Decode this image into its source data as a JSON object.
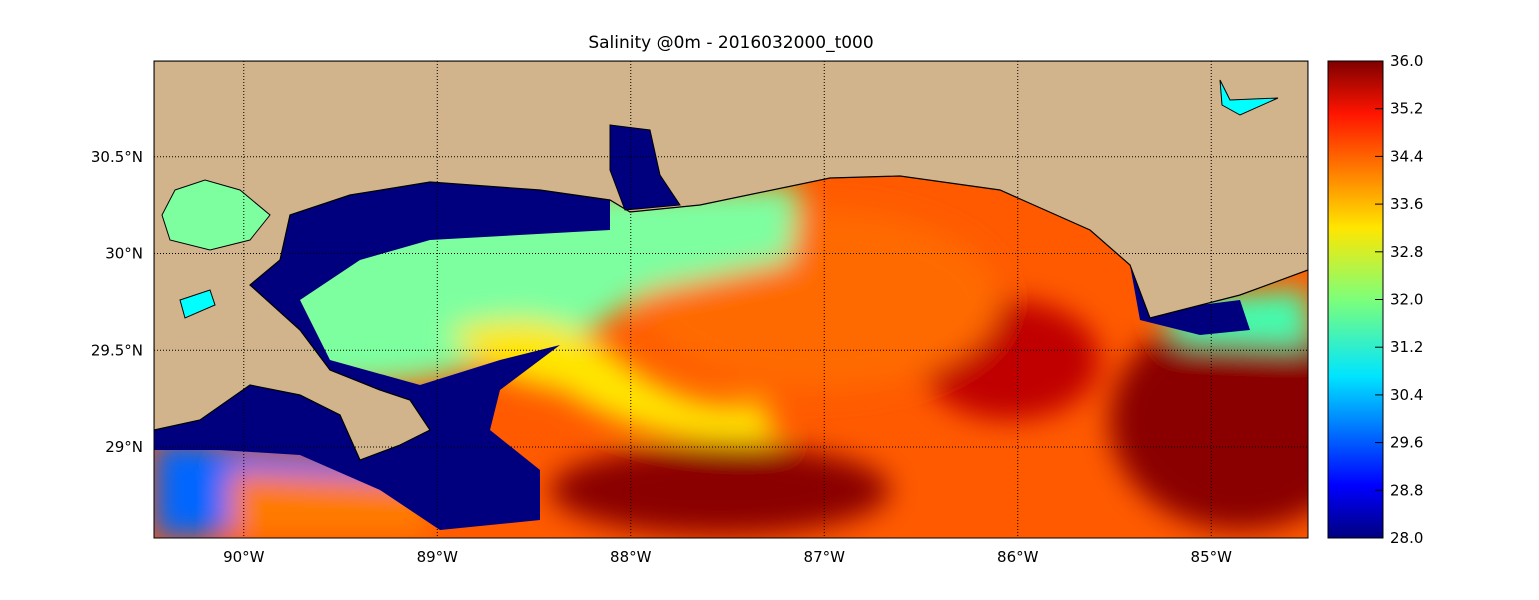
{
  "map": {
    "title": "Salinity @0m - 2016032000_t000",
    "xlim": [
      -90.464,
      -84.5
    ],
    "ylim": [
      28.53,
      30.995
    ],
    "xticks": [
      {
        "value": -90,
        "label": "90°W"
      },
      {
        "value": -89,
        "label": "89°W"
      },
      {
        "value": -88,
        "label": "88°W"
      },
      {
        "value": -87,
        "label": "87°W"
      },
      {
        "value": -86,
        "label": "86°W"
      },
      {
        "value": -85,
        "label": "85°W"
      }
    ],
    "yticks": [
      {
        "value": 29,
        "label": "29°N"
      },
      {
        "value": 29.5,
        "label": "29.5°N"
      },
      {
        "value": 30,
        "label": "30°N"
      },
      {
        "value": 30.5,
        "label": "30.5°N"
      }
    ],
    "grid": true,
    "colorbar": {
      "colormap": "jet",
      "lim": [
        28,
        36
      ],
      "ticks": [
        {
          "value": 28,
          "label": "28.0"
        },
        {
          "value": 28.8,
          "label": "28.8"
        },
        {
          "value": 29.6,
          "label": "29.6"
        },
        {
          "value": 30.4,
          "label": "30.4"
        },
        {
          "value": 31.2,
          "label": "31.2"
        },
        {
          "value": 32,
          "label": "32.0"
        },
        {
          "value": 32.8,
          "label": "32.8"
        },
        {
          "value": 33.6,
          "label": "33.6"
        },
        {
          "value": 34.4,
          "label": "34.4"
        },
        {
          "value": 35.2,
          "label": "35.2"
        },
        {
          "value": 36,
          "label": "36.0"
        }
      ]
    }
  }
}
